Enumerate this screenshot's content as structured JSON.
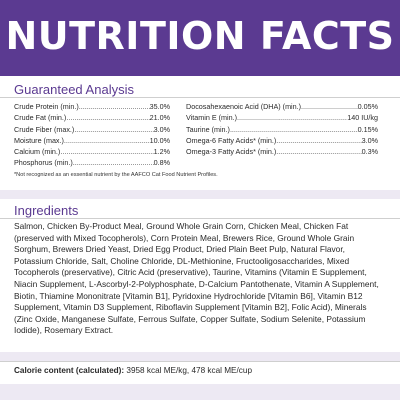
{
  "header": {
    "title": "NUTRITION FACTS"
  },
  "guaranteed_analysis": {
    "title": "Guaranteed Analysis",
    "left": [
      {
        "label": "Crude Protein (min.)",
        "value": "35.0%"
      },
      {
        "label": "Crude Fat (min.)",
        "value": "21.0%"
      },
      {
        "label": "Crude Fiber (max.)",
        "value": "3.0%"
      },
      {
        "label": "Moisture (max.)",
        "value": "10.0%"
      },
      {
        "label": "Calcium (min.)",
        "value": "1.2%"
      },
      {
        "label": "Phosphorus (min.)",
        "value": "0.8%"
      }
    ],
    "right": [
      {
        "label": "Docosahexaenoic Acid (DHA) (min.)",
        "value": "0.05%"
      },
      {
        "label": "Vitamin E (min.)",
        "value": "140 IU/kg"
      },
      {
        "label": "Taurine (min.)",
        "value": "0.15%"
      },
      {
        "label": "Omega-6 Fatty Acids* (min.)",
        "value": "3.0%"
      },
      {
        "label": "Omega-3 Fatty Acids* (min.)",
        "value": "0.3%"
      }
    ],
    "footnote": "*Not recognized as an essential nutrient by the AAFCO Cat Food Nutrient Profiles."
  },
  "ingredients": {
    "title": "Ingredients",
    "text": "Salmon, Chicken By-Product Meal, Ground Whole Grain Corn, Chicken Meal, Chicken Fat (preserved with Mixed Tocopherols), Corn Protein Meal, Brewers Rice, Ground Whole Grain Sorghum, Brewers Dried Yeast, Dried Egg Product, Dried Plain Beet Pulp, Natural Flavor, Potassium Chloride, Salt, Choline Chloride, DL-Methionine, Fructooligosaccharides, Mixed Tocopherols (preservative), Citric Acid (preservative), Taurine, Vitamins (Vitamin E Supplement, Niacin Supplement, L-Ascorbyl-2-Polyphosphate, D-Calcium Pantothenate, Vitamin A Supplement, Biotin, Thiamine Mononitrate [Vitamin B1], Pyridoxine Hydrochloride [Vitamin B6], Vitamin B12 Supplement, Vitamin D3 Supplement, Riboflavin Supplement [Vitamin B2], Folic Acid), Minerals (Zinc Oxide, Manganese Sulfate, Ferrous Sulfate, Copper Sulfate, Sodium Selenite, Potassium Iodide), Rosemary Extract."
  },
  "calorie": {
    "label": "Calorie content (calculated):",
    "value": "3958 kcal ME/kg, 478 kcal ME/cup"
  },
  "colors": {
    "accent": "#5b3a91",
    "band": "#ede9f3"
  }
}
